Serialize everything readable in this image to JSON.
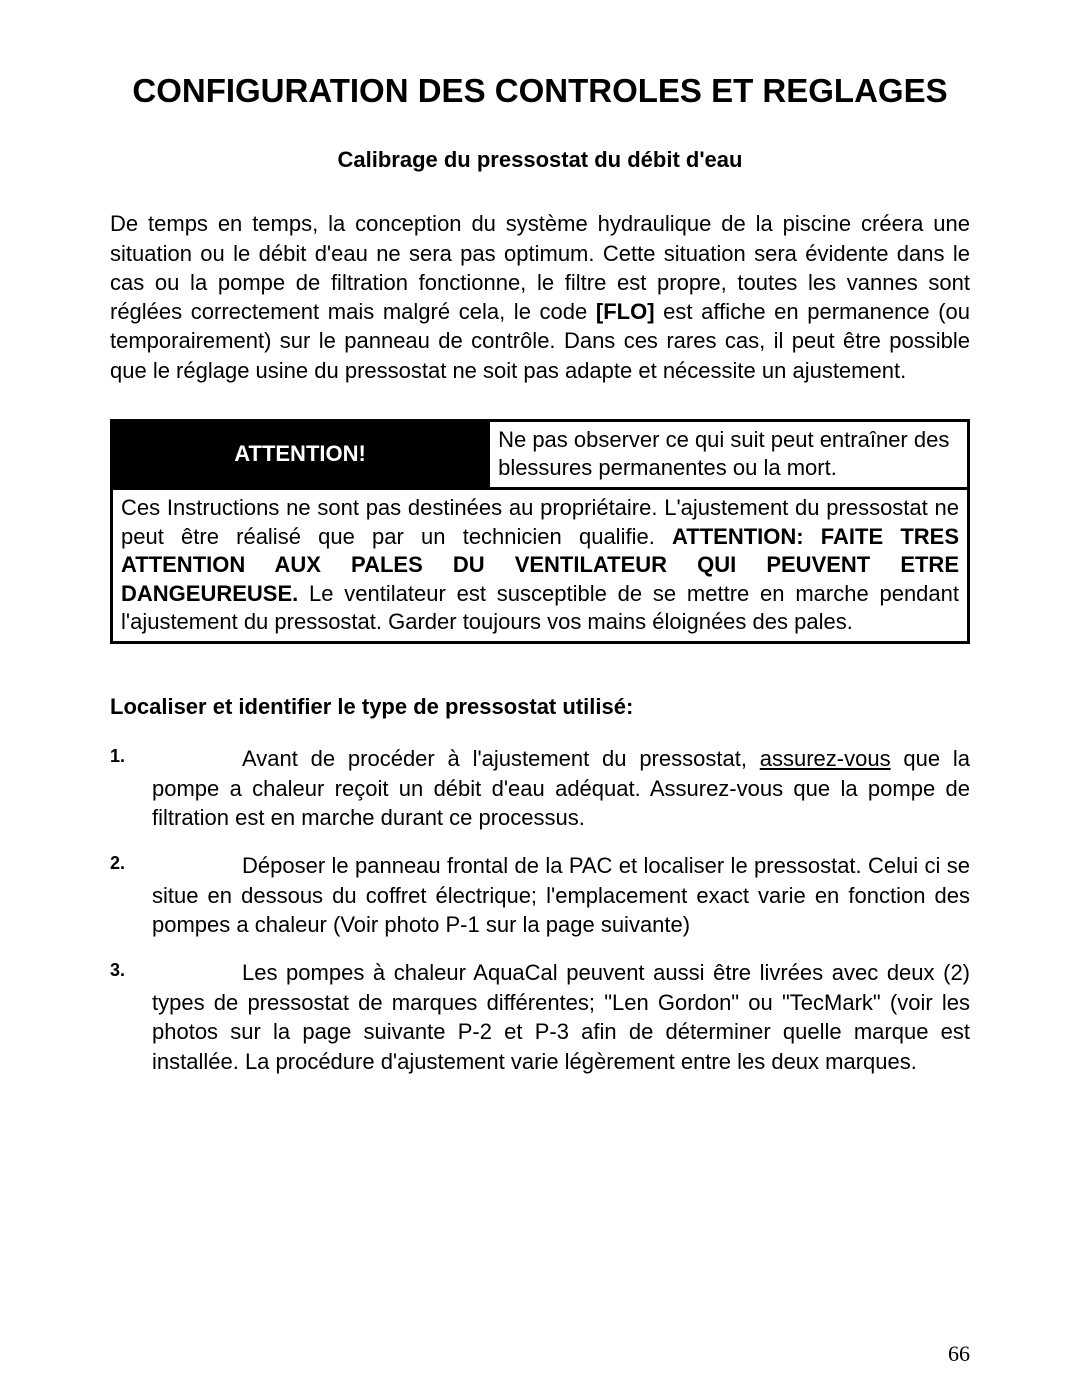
{
  "title": "CONFIGURATION DES CONTROLES ET REGLAGES",
  "subtitle": "Calibrage du pressostat du débit d'eau",
  "intro_pre": "De temps en temps, la conception du système hydraulique de la piscine créera une situation ou le débit d'eau ne sera pas optimum. Cette situation sera évidente dans le cas ou la pompe de filtration fonctionne, le filtre est propre, toutes les vannes sont réglées correctement mais malgré cela, le code ",
  "intro_code": "[FLO]",
  "intro_post": " est affiche en permanence (ou temporairement) sur le panneau de contrôle. Dans ces rares cas, il peut être possible que le réglage usine du pressostat ne soit pas adapte et nécessite un ajustement.",
  "attention": {
    "label": "ATTENTION!",
    "header_text": "Ne pas observer ce qui suit peut entraîner des blessures permanentes ou la mort.",
    "body_pre": "Ces Instructions ne sont pas destinées au propriétaire. L'ajustement du pressostat ne peut être réalisé que par un technicien qualifie. ",
    "body_bold": "ATTENTION: FAITE TRES ATTENTION AUX PALES DU VENTILATEUR QUI PEUVENT ETRE DANGEUREUSE.",
    "body_post": " Le ventilateur est susceptible de se mettre en marche pendant l'ajustement du pressostat. Garder toujours vos mains éloignées des pales."
  },
  "section_head": "Localiser et identifier le type de pressostat utilisé:",
  "list": [
    {
      "num": "1.",
      "pre": "Avant de procéder à l'ajustement du pressostat, ",
      "underline": "assurez-vous",
      "post": " que la pompe a chaleur reçoit un débit d'eau adéquat. Assurez-vous que la pompe de filtration est en marche durant ce processus."
    },
    {
      "num": "2.",
      "pre": "Déposer le panneau frontal de la PAC et localiser le pressostat. Celui ci se situe en dessous du coffret électrique; l'emplacement exact varie en fonction des pompes a chaleur (Voir photo P-1 sur la page suivante)",
      "underline": "",
      "post": ""
    },
    {
      "num": "3.",
      "pre": "Les pompes à chaleur AquaCal peuvent aussi être livrées avec deux (2) types de pressostat de marques différentes; \"Len Gordon\" ou \"TecMark\" (voir les photos sur la page suivante P-2 et P-3 afin de déterminer quelle marque est installée.  La procédure d'ajustement varie légèrement entre les deux marques.",
      "underline": "",
      "post": ""
    }
  ],
  "page_number": "66",
  "colors": {
    "text": "#000000",
    "background": "#ffffff",
    "attention_bg": "#000000",
    "attention_fg": "#ffffff",
    "border": "#000000"
  },
  "fonts": {
    "body_family": "Arial",
    "title_size_pt": 24,
    "subtitle_size_pt": 16,
    "body_size_pt": 16,
    "attention_label_size_pt": 22,
    "list_marker_size_pt": 13,
    "page_number_family": "Times New Roman"
  }
}
